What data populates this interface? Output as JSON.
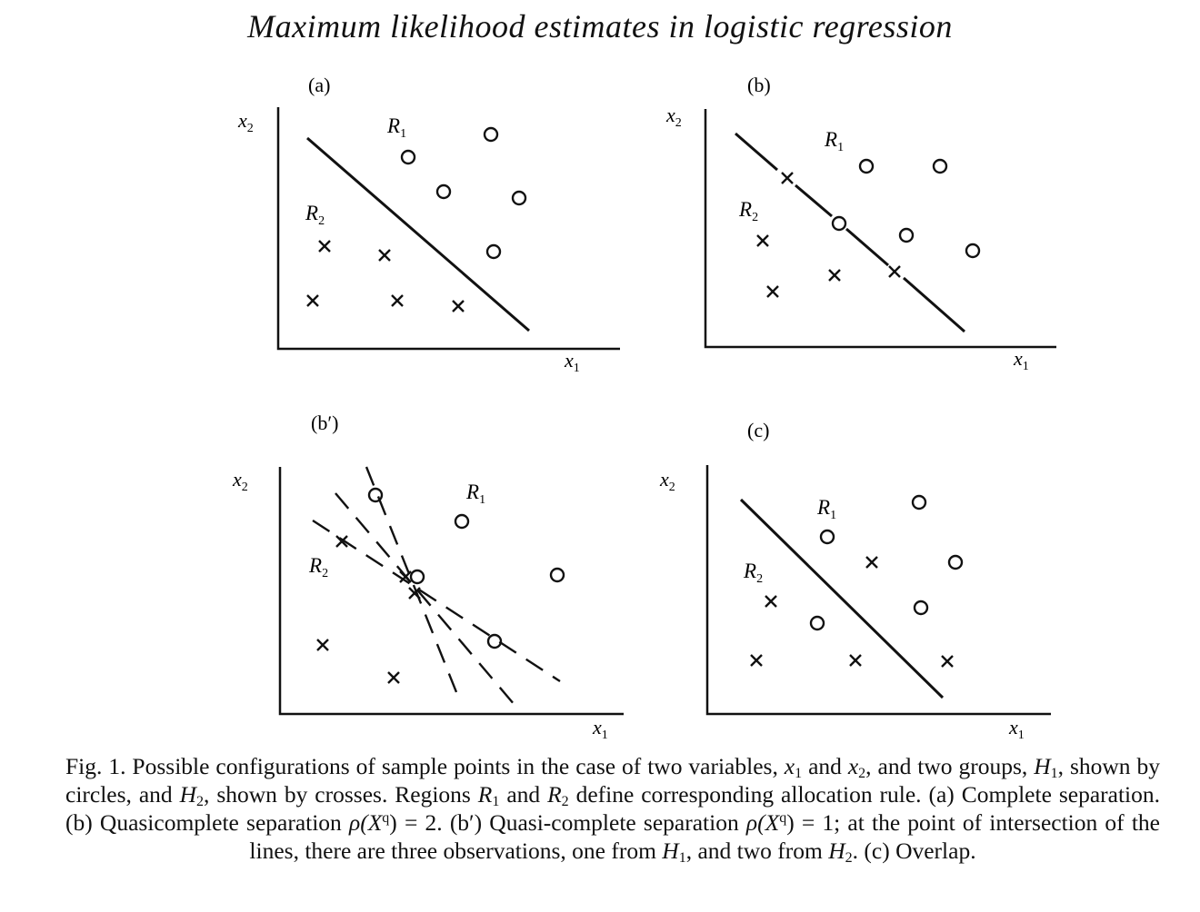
{
  "title": "Maximum likelihood estimates in logistic regression",
  "axes": {
    "x_main": "x",
    "x_sub": "1",
    "y_main": "x",
    "y_sub": "2"
  },
  "panels": [
    {
      "id": "a",
      "label": "(a)"
    },
    {
      "id": "b",
      "label": "(b)"
    },
    {
      "id": "bp",
      "label": "(b′)"
    },
    {
      "id": "c",
      "label": "(c)"
    }
  ],
  "regions": {
    "r_main": "R",
    "r1_sub": "1",
    "r2_sub": "2"
  },
  "caption": {
    "p1": "Fig. 1. Possible configurations of sample points in the case of two variables,",
    "x1": "x",
    "x1_sub": "1",
    "and1": "and",
    "x2": "x",
    "x2_sub": "2",
    "p2": ", and two groups,",
    "h1": "H",
    "h1_sub": "1",
    "p3": ", shown by circles, and",
    "h2": "H",
    "h2_sub": "2",
    "p4": ", shown by crosses. Regions",
    "r1": "R",
    "r1_sub": "1",
    "and2": "and",
    "r2": "R",
    "r2_sub": "2",
    "p5": "define corresponding allocation rule. (a) Complete separation. (b) Quasicomplete separation",
    "rho1": "ρ(X",
    "q1": "q",
    "rho1_end": ") = 2.",
    "p6": "(b′) Quasi-complete separation",
    "rho2": "ρ(X",
    "q2": "q",
    "rho2_end": ") = 1;",
    "p7": "at the point of intersection of the lines, there are three observations, one from",
    "h3": "H",
    "h3_sub": "1",
    "p8": ", and two from",
    "h4": "H",
    "h4_sub": "2",
    "p9": ". (c) Overlap."
  }
}
